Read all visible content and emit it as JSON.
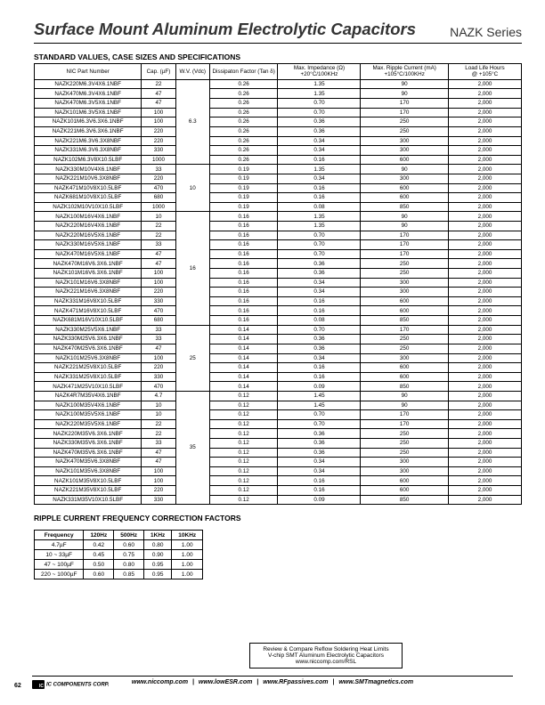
{
  "header": {
    "title": "Surface Mount Aluminum Electrolytic Capacitors",
    "series": "NAZK Series"
  },
  "spec_section": {
    "subtitle": "STANDARD VALUES, CASE SIZES AND SPECIFICATIONS",
    "columns": [
      "NIC Part Number",
      "Cap. (µF)",
      "W.V. (Vdc)",
      "Dissipaton Factor (Tan δ)",
      "Max. Impedance (Ω)\n+20°C/100KHz",
      "Max. Ripple Current (mA)\n+105°C/100KHz",
      "Load Life Hours\n@ +105°C"
    ],
    "groups": [
      {
        "wv": "6.3",
        "rows": [
          {
            "p": "NAZK220M6.3V4X6.1NBF",
            "c": "22",
            "d": "0.26",
            "z": "1.35",
            "r": "90",
            "l": "2,000"
          },
          {
            "p": "NAZK470M6.3V4X6.1NBF",
            "c": "47",
            "d": "0.26",
            "z": "1.35",
            "r": "90",
            "l": "2,000"
          },
          {
            "p": "NAZK470M6.3V5X6.1NBF",
            "c": "47",
            "d": "0.26",
            "z": "0.70",
            "r": "170",
            "l": "2,000"
          },
          {
            "p": "NAZK101M6.3V5X6.1NBF",
            "c": "100",
            "d": "0.26",
            "z": "0.70",
            "r": "170",
            "l": "2,000"
          },
          {
            "p": "NAZK101M6.3V6.3X6.1NBF",
            "c": "100",
            "d": "0.26",
            "z": "0.36",
            "r": "250",
            "l": "2,000"
          },
          {
            "p": "NAZK221M6.3V6.3X6.1NBF",
            "c": "220",
            "d": "0.26",
            "z": "0.36",
            "r": "250",
            "l": "2,000"
          },
          {
            "p": "NAZK221M6.3V6.3X8NBF",
            "c": "220",
            "d": "0.26",
            "z": "0.34",
            "r": "300",
            "l": "2,000"
          },
          {
            "p": "NAZK331M6.3V6.3X8NBF",
            "c": "330",
            "d": "0.26",
            "z": "0.34",
            "r": "300",
            "l": "2,000"
          },
          {
            "p": "NAZK102M6.3V8X10.5LBF",
            "c": "1000",
            "d": "0.26",
            "z": "0.16",
            "r": "600",
            "l": "2,000"
          }
        ]
      },
      {
        "wv": "10",
        "rows": [
          {
            "p": "NAZK330M10V4X6.1NBF",
            "c": "33",
            "d": "0.19",
            "z": "1.35",
            "r": "90",
            "l": "2,000"
          },
          {
            "p": "NAZK221M10V6.3X8NBF",
            "c": "220",
            "d": "0.19",
            "z": "0.34",
            "r": "300",
            "l": "2,000"
          },
          {
            "p": "NAZK471M10V8X10.5LBF",
            "c": "470",
            "d": "0.19",
            "z": "0.16",
            "r": "600",
            "l": "2,000"
          },
          {
            "p": "NAZK681M10V8X10.5LBF",
            "c": "680",
            "d": "0.19",
            "z": "0.16",
            "r": "600",
            "l": "2,000"
          },
          {
            "p": "NAZK102M10V10X10.5LBF",
            "c": "1000",
            "d": "0.19",
            "z": "0.08",
            "r": "850",
            "l": "2,000"
          }
        ]
      },
      {
        "wv": "16",
        "rows": [
          {
            "p": "NAZK100M16V4X6.1NBF",
            "c": "10",
            "d": "0.16",
            "z": "1.35",
            "r": "90",
            "l": "2,000"
          },
          {
            "p": "NAZK220M16V4X6.1NBF",
            "c": "22",
            "d": "0.16",
            "z": "1.35",
            "r": "90",
            "l": "2,000"
          },
          {
            "p": "NAZK220M16V5X6.1NBF",
            "c": "22",
            "d": "0.16",
            "z": "0.70",
            "r": "170",
            "l": "2,000"
          },
          {
            "p": "NAZK330M16V5X6.1NBF",
            "c": "33",
            "d": "0.16",
            "z": "0.70",
            "r": "170",
            "l": "2,000"
          },
          {
            "p": "NAZK470M16V5X6.1NBF",
            "c": "47",
            "d": "0.16",
            "z": "0.70",
            "r": "170",
            "l": "2,000"
          },
          {
            "p": "NAZK470M16V6.3X6.1NBF",
            "c": "47",
            "d": "0.16",
            "z": "0.36",
            "r": "250",
            "l": "2,000"
          },
          {
            "p": "NAZK101M16V6.3X6.1NBF",
            "c": "100",
            "d": "0.16",
            "z": "0.36",
            "r": "250",
            "l": "2,000"
          },
          {
            "p": "NAZK101M16V6.3X8NBF",
            "c": "100",
            "d": "0.16",
            "z": "0.34",
            "r": "300",
            "l": "2,000"
          },
          {
            "p": "NAZK221M16V6.3X8NBF",
            "c": "220",
            "d": "0.16",
            "z": "0.34",
            "r": "300",
            "l": "2,000"
          },
          {
            "p": "NAZK331M16V8X10.5LBF",
            "c": "330",
            "d": "0.16",
            "z": "0.16",
            "r": "600",
            "l": "2,000"
          },
          {
            "p": "NAZK471M16V8X10.5LBF",
            "c": "470",
            "d": "0.16",
            "z": "0.16",
            "r": "600",
            "l": "2,000"
          },
          {
            "p": "NAZK681M16V10X10.5LBF",
            "c": "680",
            "d": "0.16",
            "z": "0.08",
            "r": "850",
            "l": "2,000"
          }
        ]
      },
      {
        "wv": "25",
        "rows": [
          {
            "p": "NAZK330M25V5X6.1NBF",
            "c": "33",
            "d": "0.14",
            "z": "0.70",
            "r": "170",
            "l": "2,000"
          },
          {
            "p": "NAZK330M25V6.3X6.1NBF",
            "c": "33",
            "d": "0.14",
            "z": "0.36",
            "r": "250",
            "l": "2,000"
          },
          {
            "p": "NAZK470M25V6.3X6.1NBF",
            "c": "47",
            "d": "0.14",
            "z": "0.36",
            "r": "250",
            "l": "2,000"
          },
          {
            "p": "NAZK101M25V6.3X8NBF",
            "c": "100",
            "d": "0.14",
            "z": "0.34",
            "r": "300",
            "l": "2,000"
          },
          {
            "p": "NAZK221M25V8X10.5LBF",
            "c": "220",
            "d": "0.14",
            "z": "0.16",
            "r": "600",
            "l": "2,000"
          },
          {
            "p": "NAZK331M25V8X10.5LBF",
            "c": "330",
            "d": "0.14",
            "z": "0.16",
            "r": "600",
            "l": "2,000"
          },
          {
            "p": "NAZK471M25V10X10.5LBF",
            "c": "470",
            "d": "0.14",
            "z": "0.09",
            "r": "850",
            "l": "2,000"
          }
        ]
      },
      {
        "wv": "35",
        "rows": [
          {
            "p": "NAZK4R7M35V4X6.1NBF",
            "c": "4.7",
            "d": "0.12",
            "z": "1.45",
            "r": "90",
            "l": "2,000"
          },
          {
            "p": "NAZK100M35V4X6.1NBF",
            "c": "10",
            "d": "0.12",
            "z": "1.45",
            "r": "90",
            "l": "2,000"
          },
          {
            "p": "NAZK100M35V5X6.1NBF",
            "c": "10",
            "d": "0.12",
            "z": "0.70",
            "r": "170",
            "l": "2,000"
          },
          {
            "p": "NAZK220M35V5X6.1NBF",
            "c": "22",
            "d": "0.12",
            "z": "0.70",
            "r": "170",
            "l": "2,000"
          },
          {
            "p": "NAZK220M35V6.3X6.1NBF",
            "c": "22",
            "d": "0.12",
            "z": "0.36",
            "r": "250",
            "l": "2,000"
          },
          {
            "p": "NAZK330M35V6.3X6.1NBF",
            "c": "33",
            "d": "0.12",
            "z": "0.36",
            "r": "250",
            "l": "2,000"
          },
          {
            "p": "NAZK470M35V6.3X6.1NBF",
            "c": "47",
            "d": "0.12",
            "z": "0.36",
            "r": "250",
            "l": "2,000"
          },
          {
            "p": "NAZK470M35V6.3X8NBF",
            "c": "47",
            "d": "0.12",
            "z": "0.34",
            "r": "300",
            "l": "2,000"
          },
          {
            "p": "NAZK101M35V6.3X8NBF",
            "c": "100",
            "d": "0.12",
            "z": "0.34",
            "r": "300",
            "l": "2,000"
          },
          {
            "p": "NAZK101M35V8X10.5LBF",
            "c": "100",
            "d": "0.12",
            "z": "0.16",
            "r": "600",
            "l": "2,000"
          },
          {
            "p": "NAZK221M35V8X10.5LBF",
            "c": "220",
            "d": "0.12",
            "z": "0.16",
            "r": "600",
            "l": "2,000"
          },
          {
            "p": "NAZK331M35V10X10.5LBF",
            "c": "330",
            "d": "0.12",
            "z": "0.09",
            "r": "850",
            "l": "2,000"
          }
        ]
      }
    ]
  },
  "ripple_section": {
    "subtitle": "RIPPLE CURRENT FREQUENCY CORRECTION FACTORS",
    "columns": [
      "Frequency",
      "120Hz",
      "500Hz",
      "1KHz",
      "10KHz"
    ],
    "rows": [
      [
        "4.7µF",
        "0.42",
        "0.60",
        "0.80",
        "1.00"
      ],
      [
        "10 ~ 33µF",
        "0.45",
        "0.75",
        "0.90",
        "1.00"
      ],
      [
        "47 ~ 100µF",
        "0.50",
        "0.80",
        "0.95",
        "1.00"
      ],
      [
        "220 ~ 1000µF",
        "0.60",
        "0.85",
        "0.95",
        "1.00"
      ]
    ]
  },
  "footer": {
    "reflow1": "Review & Compare Reflow Soldering Heat Limits",
    "reflow2": "V-chip SMT Aluminum Electrolytic Capacitors",
    "reflow3": "www.niccomp.com/RSL",
    "corp": "IC COMPONENTS CORP.",
    "links": [
      "www.niccomp.com",
      "www.lowESR.com",
      "www.RFpassives.com",
      "www.SMTmagnetics.com"
    ],
    "page": "62"
  }
}
